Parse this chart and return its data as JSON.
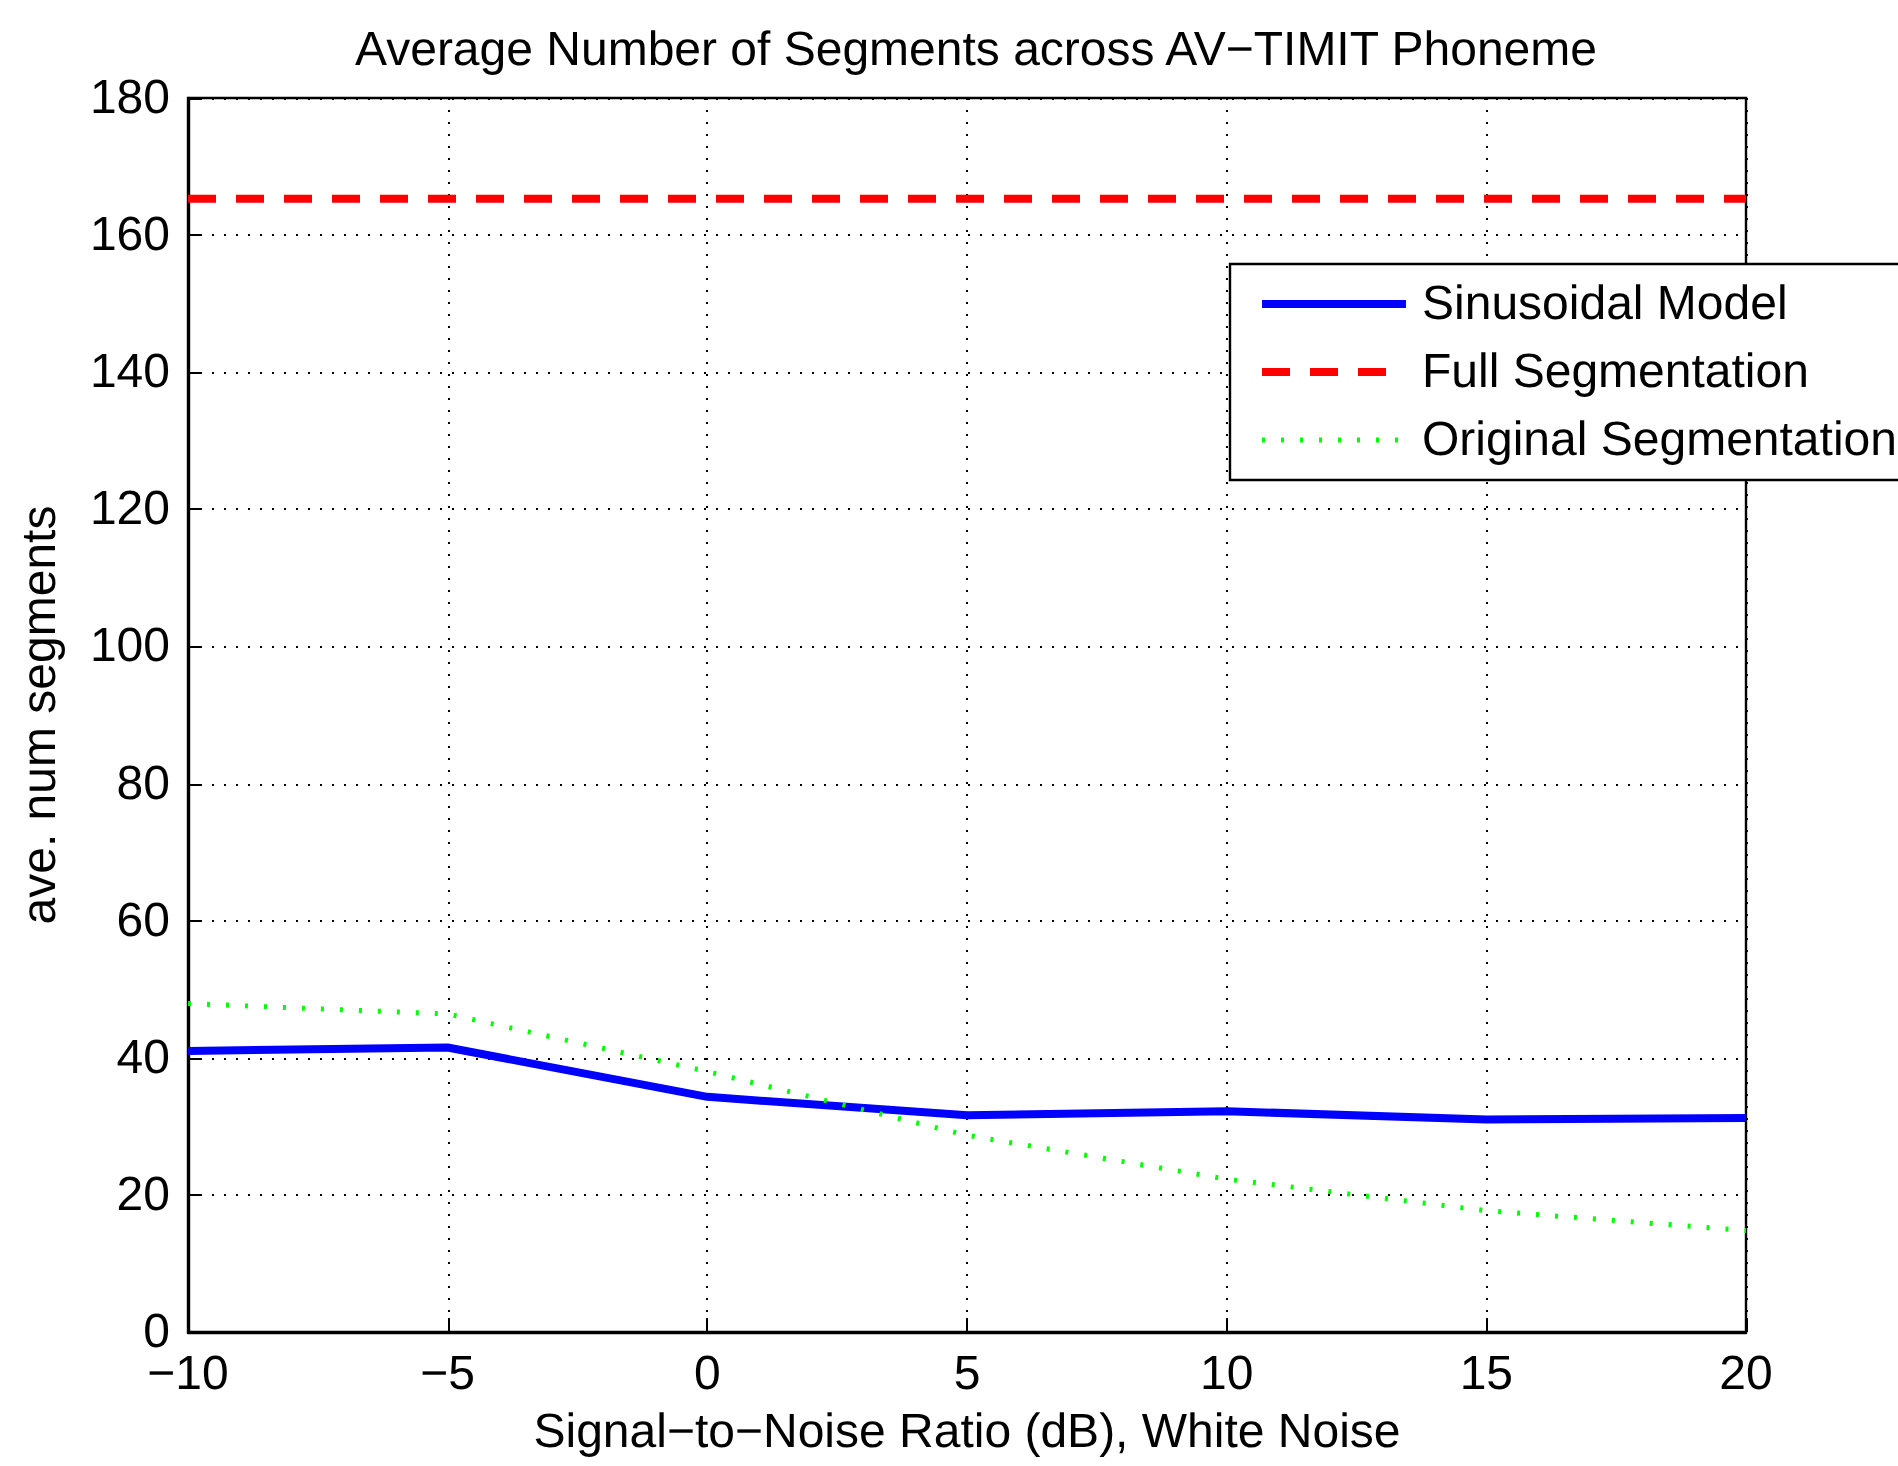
{
  "chart_data": {
    "type": "line",
    "title": "Average Number of Segments across AV−TIMIT Phoneme",
    "xlabel": "Signal−to−Noise Ratio (dB), White Noise",
    "ylabel": "ave. num segments",
    "x": [
      -10,
      -5,
      0,
      5,
      10,
      15,
      20
    ],
    "series": [
      {
        "name": "Sinusoidal Model",
        "color": "#0000ff",
        "line_style": "solid",
        "values": [
          41,
          41.5,
          34.3,
          31.6,
          32.2,
          31,
          31.2
        ]
      },
      {
        "name": "Full Segmentation",
        "color": "#ff0000",
        "line_style": "dashed",
        "values": [
          165.3,
          165.3,
          165.3,
          165.3,
          165.3,
          165.3,
          165.3
        ]
      },
      {
        "name": "Original Segmentation",
        "color": "#00ff00",
        "line_style": "dotted",
        "values": [
          47.9,
          46.4,
          38,
          28.7,
          22.3,
          17.7,
          14.8
        ]
      }
    ],
    "xlim": [
      -10,
      20
    ],
    "xticks": [
      -10,
      -5,
      0,
      5,
      10,
      15,
      20
    ],
    "ylim": [
      0,
      180
    ],
    "yticks": [
      0,
      20,
      40,
      60,
      80,
      100,
      120,
      140,
      160,
      180
    ],
    "grid": true,
    "legend": "top right",
    "marker": "none"
  }
}
